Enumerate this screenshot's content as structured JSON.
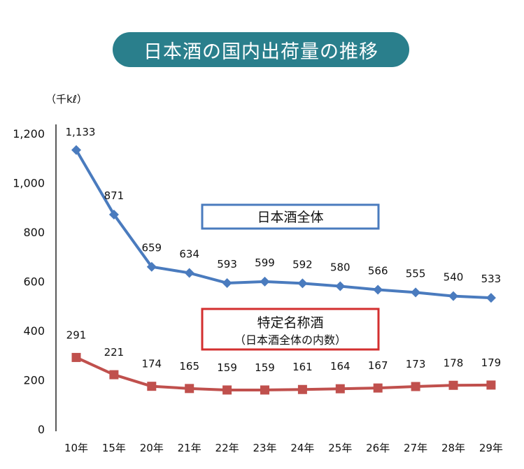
{
  "chart_data": {
    "type": "line",
    "title": "日本酒の国内出荷量の推移",
    "unit_label": "（千kℓ）",
    "categories": [
      "10年",
      "15年",
      "20年",
      "21年",
      "22年",
      "23年",
      "24年",
      "25年",
      "26年",
      "27年",
      "28年",
      "29年"
    ],
    "ylim": [
      0,
      1200
    ],
    "y_ticks": [
      "0",
      "200",
      "400",
      "600",
      "800",
      "1,000",
      "1,200"
    ],
    "y_tick_values": [
      0,
      200,
      400,
      600,
      800,
      1000,
      1200
    ],
    "grid": false,
    "series": [
      {
        "name": "日本酒全体",
        "marker": "diamond",
        "color": "#4a7bbe",
        "values": [
          1133,
          871,
          659,
          634,
          593,
          599,
          592,
          580,
          566,
          555,
          540,
          533
        ],
        "labels": [
          "1,133",
          "871",
          "659",
          "634",
          "593",
          "599",
          "592",
          "580",
          "566",
          "555",
          "540",
          "533"
        ]
      },
      {
        "name": "特定名称酒",
        "subtitle": "（日本酒全体の内数）",
        "marker": "square",
        "color": "#c0504d",
        "values": [
          291,
          221,
          174,
          165,
          159,
          159,
          161,
          164,
          167,
          173,
          178,
          179
        ],
        "labels": [
          "291",
          "221",
          "174",
          "165",
          "159",
          "159",
          "161",
          "164",
          "167",
          "173",
          "178",
          "179"
        ]
      }
    ]
  }
}
